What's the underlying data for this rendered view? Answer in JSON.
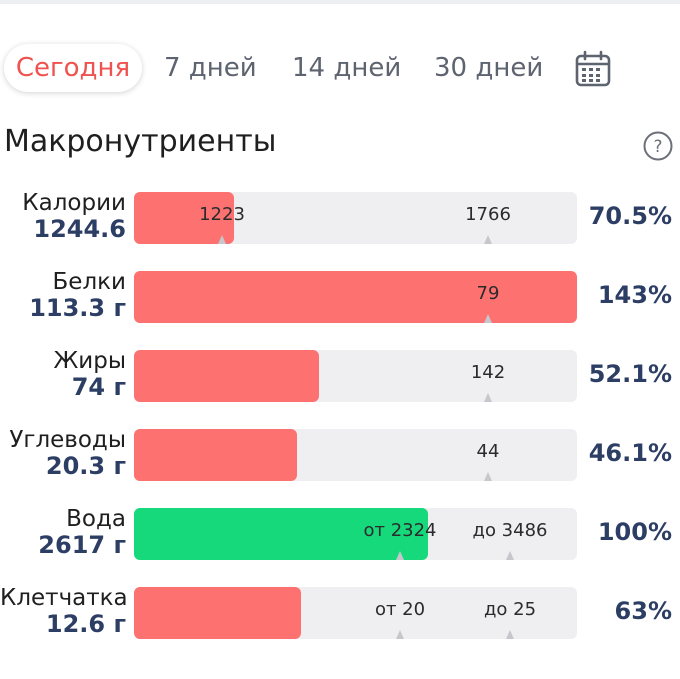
{
  "tabs": [
    {
      "label": "Сегодня",
      "active": true
    },
    {
      "label": "7 дней",
      "active": false
    },
    {
      "label": "14 дней",
      "active": false
    },
    {
      "label": "30 дней",
      "active": false
    }
  ],
  "section": {
    "title": "Макронутриенты"
  },
  "colors": {
    "over": "#fd7171",
    "ok": "#16d97c",
    "value": "#2d3e64",
    "active_tab": "#ef5350"
  },
  "nutrients": [
    {
      "name": "Калории",
      "value": "1244.6",
      "target_labels": [
        "1223",
        "1766"
      ],
      "percent": "70.5%",
      "fill_fraction": 0.225
    },
    {
      "name": "Белки",
      "value": "113.3 г",
      "target_labels": [
        "79"
      ],
      "percent": "143%",
      "fill_fraction": 1.0
    },
    {
      "name": "Жиры",
      "value": "74 г",
      "target_labels": [
        "142"
      ],
      "percent": "52.1%",
      "fill_fraction": 0.417
    },
    {
      "name": "Углеводы",
      "value": "20.3 г",
      "target_labels": [
        "44"
      ],
      "percent": "46.1%",
      "fill_fraction": 0.368
    },
    {
      "name": "Вода",
      "value": "2617 г",
      "target_labels": [
        "от 2324",
        "до 3486"
      ],
      "percent": "100%",
      "fill_fraction": 0.663
    },
    {
      "name": "Клетчатка",
      "value": "12.6 г",
      "target_labels": [
        "от 20",
        "до 25"
      ],
      "percent": "63%",
      "fill_fraction": 0.377
    }
  ]
}
